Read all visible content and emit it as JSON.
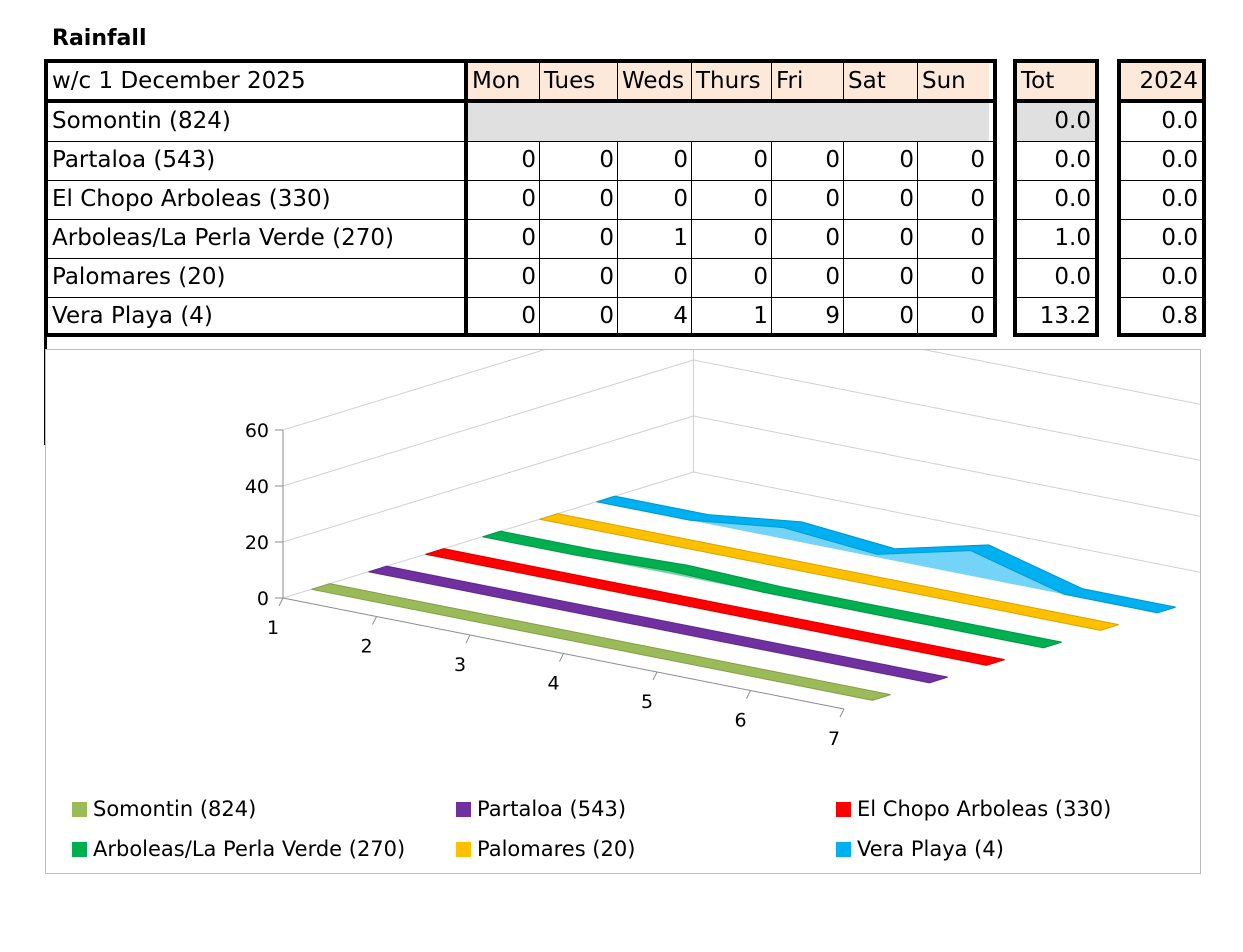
{
  "title": "Rainfall",
  "table": {
    "week_label": "w/c 1 December  2025",
    "days": [
      "Mon",
      "Tues",
      "Weds",
      "Thurs",
      "Fri",
      "Sat",
      "Sun"
    ],
    "tot_label": "Tot",
    "prev_year_label": "2024",
    "rows": [
      {
        "station": "Somontin (824)",
        "values": [
          "",
          "",
          "",
          "",
          "",
          "",
          ""
        ],
        "tot": "0.0",
        "prev": "0.0"
      },
      {
        "station": "Partaloa (543)",
        "values": [
          "0",
          "0",
          "0",
          "0",
          "0",
          "0",
          "0"
        ],
        "tot": "0.0",
        "prev": "0.0"
      },
      {
        "station": "El Chopo Arboleas (330)",
        "values": [
          "0",
          "0",
          "0",
          "0",
          "0",
          "0",
          "0"
        ],
        "tot": "0.0",
        "prev": "0.0"
      },
      {
        "station": "Arboleas/La Perla Verde (270)",
        "values": [
          "0",
          "0",
          "1",
          "0",
          "0",
          "0",
          "0"
        ],
        "tot": "1.0",
        "prev": "0.0"
      },
      {
        "station": "Palomares (20)",
        "values": [
          "0",
          "0",
          "0",
          "0",
          "0",
          "0",
          "0"
        ],
        "tot": "0.0",
        "prev": "0.0"
      },
      {
        "station": "Vera Playa (4)",
        "values": [
          "0",
          "0",
          "4",
          "1",
          "9",
          "0",
          "0"
        ],
        "tot": "13.2",
        "prev": "0.8"
      }
    ]
  },
  "chart_data": {
    "type": "area",
    "x": [
      1,
      2,
      3,
      4,
      5,
      6,
      7
    ],
    "x_tick_labels": [
      "1",
      "2",
      "3",
      "4",
      "5",
      "6",
      "7"
    ],
    "y_tick_labels": [
      "0",
      "20",
      "40",
      "60"
    ],
    "ylim": [
      0,
      60
    ],
    "grid": true,
    "legend_position": "bottom",
    "series": [
      {
        "name": "Somontin (824)",
        "color": "#9bbb59",
        "values": [
          0,
          0,
          0,
          0,
          0,
          0,
          0
        ]
      },
      {
        "name": "Partaloa (543)",
        "color": "#7030a0",
        "values": [
          0,
          0,
          0,
          0,
          0,
          0,
          0
        ]
      },
      {
        "name": "El Chopo Arboleas (330)",
        "color": "#ff0000",
        "values": [
          0,
          0,
          0,
          0,
          0,
          0,
          0
        ]
      },
      {
        "name": "Arboleas/La Perla Verde (270)",
        "color": "#00b050",
        "values": [
          0,
          0,
          1,
          0,
          0,
          0,
          0
        ]
      },
      {
        "name": "Palomares (20)",
        "color": "#ffc000",
        "values": [
          0,
          0,
          0,
          0,
          0,
          0,
          0
        ]
      },
      {
        "name": "Vera Playa (4)",
        "color": "#00b0f0",
        "values": [
          0,
          0,
          4,
          1,
          9,
          0,
          0
        ]
      }
    ]
  }
}
